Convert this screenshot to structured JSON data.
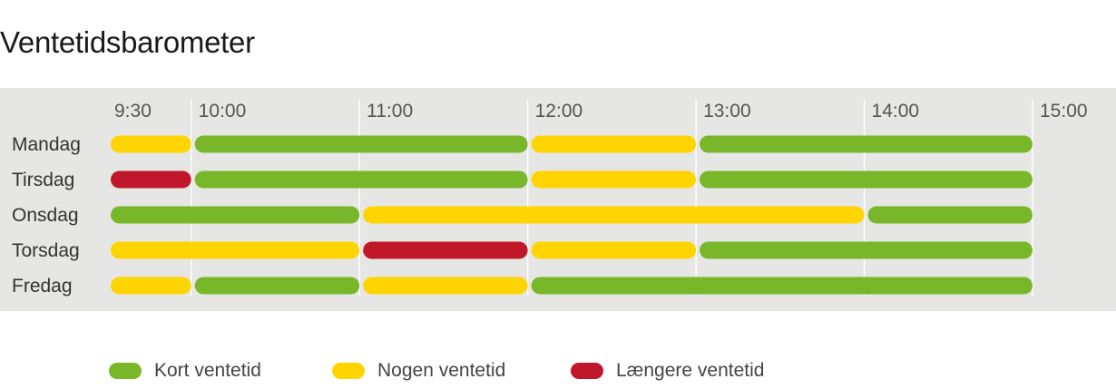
{
  "chart_data": {
    "type": "bar",
    "orientation": "horizontal-timeline",
    "title": "Ventetidsbarometer",
    "x_ticks": [
      "9:30",
      "10:00",
      "11:00",
      "12:00",
      "13:00",
      "14:00",
      "15:00"
    ],
    "xlim": [
      "9:30",
      "15:00"
    ],
    "grid": true,
    "legend_position": "bottom",
    "levels": [
      {
        "key": "kort",
        "label": "Kort ventetid",
        "color": "#78b72a"
      },
      {
        "key": "nogen",
        "label": "Nogen ventetid",
        "color": "#ffd400"
      },
      {
        "key": "laengere",
        "label": "Længere ventetid",
        "color": "#c0182a"
      }
    ],
    "rows": [
      {
        "day": "Mandag",
        "segments": [
          {
            "start": "9:30",
            "end": "10:00",
            "level": "nogen"
          },
          {
            "start": "10:00",
            "end": "12:00",
            "level": "kort"
          },
          {
            "start": "12:00",
            "end": "13:00",
            "level": "nogen"
          },
          {
            "start": "13:00",
            "end": "15:00",
            "level": "kort"
          }
        ]
      },
      {
        "day": "Tirsdag",
        "segments": [
          {
            "start": "9:30",
            "end": "10:00",
            "level": "laengere"
          },
          {
            "start": "10:00",
            "end": "12:00",
            "level": "kort"
          },
          {
            "start": "12:00",
            "end": "13:00",
            "level": "nogen"
          },
          {
            "start": "13:00",
            "end": "15:00",
            "level": "kort"
          }
        ]
      },
      {
        "day": "Onsdag",
        "segments": [
          {
            "start": "9:30",
            "end": "11:00",
            "level": "kort"
          },
          {
            "start": "11:00",
            "end": "14:00",
            "level": "nogen"
          },
          {
            "start": "14:00",
            "end": "15:00",
            "level": "kort"
          }
        ]
      },
      {
        "day": "Torsdag",
        "segments": [
          {
            "start": "9:30",
            "end": "11:00",
            "level": "nogen"
          },
          {
            "start": "11:00",
            "end": "12:00",
            "level": "laengere"
          },
          {
            "start": "12:00",
            "end": "13:00",
            "level": "nogen"
          },
          {
            "start": "13:00",
            "end": "15:00",
            "level": "kort"
          }
        ]
      },
      {
        "day": "Fredag",
        "segments": [
          {
            "start": "9:30",
            "end": "10:00",
            "level": "nogen"
          },
          {
            "start": "10:00",
            "end": "11:00",
            "level": "kort"
          },
          {
            "start": "11:00",
            "end": "12:00",
            "level": "nogen"
          },
          {
            "start": "12:00",
            "end": "15:00",
            "level": "kort"
          }
        ]
      }
    ]
  },
  "colors": {
    "panel_background": "#e6e6e5",
    "gridline": "#ffffff"
  }
}
